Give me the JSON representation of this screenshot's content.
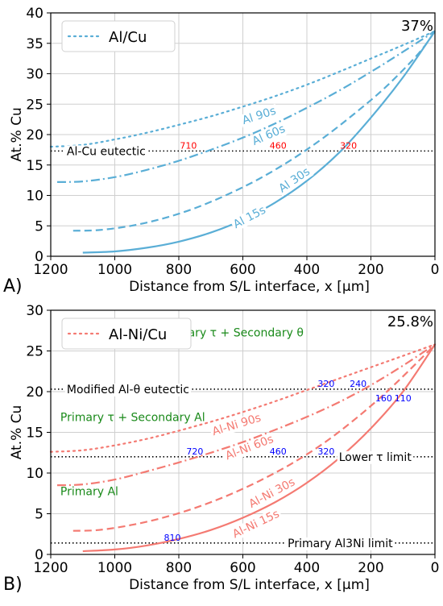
{
  "chart_data": [
    {
      "type": "line",
      "panel_label": "A)",
      "xlabel": "Distance from S/L interface, x [µm]",
      "ylabel": "At.% Cu",
      "xlim": [
        1200,
        0
      ],
      "ylim": [
        0,
        40
      ],
      "xticks": [
        1200,
        1000,
        800,
        600,
        400,
        200,
        0
      ],
      "yticks": [
        0,
        5,
        10,
        15,
        20,
        25,
        30,
        35,
        40
      ],
      "grid": true,
      "color": "#5aaed6",
      "legend": {
        "label": "Al/Cu",
        "placement": "top-left"
      },
      "top_value_label": "37%",
      "reference_lines": [
        {
          "y": 17.3,
          "label": "Al-Cu eutectic",
          "label_x": 1150
        }
      ],
      "series": [
        {
          "name": "Al 90s",
          "dash": "dot",
          "label_x": 550,
          "label_y": 23.2,
          "points": [
            [
              1200,
              18
            ],
            [
              1100,
              18.3
            ],
            [
              1000,
              19.2
            ],
            [
              900,
              20.3
            ],
            [
              800,
              21.6
            ],
            [
              700,
              23
            ],
            [
              600,
              24.6
            ],
            [
              500,
              26.3
            ],
            [
              400,
              28.2
            ],
            [
              300,
              30.3
            ],
            [
              200,
              32.5
            ],
            [
              100,
              34.7
            ],
            [
              0,
              37
            ]
          ]
        },
        {
          "name": "Al 60s",
          "dash": "dashdot",
          "label_x": 520,
          "label_y": 20.0,
          "points": [
            [
              1180,
              12.2
            ],
            [
              1100,
              12.3
            ],
            [
              1000,
              13
            ],
            [
              900,
              14.2
            ],
            [
              800,
              15.7
            ],
            [
              700,
              17.5
            ],
            [
              600,
              19.5
            ],
            [
              500,
              21.8
            ],
            [
              400,
              24.4
            ],
            [
              300,
              27.2
            ],
            [
              200,
              30.3
            ],
            [
              100,
              33.6
            ],
            [
              0,
              37
            ]
          ]
        },
        {
          "name": "Al 30s",
          "dash": "dash",
          "label_x": 440,
          "label_y": 12.6,
          "points": [
            [
              1130,
              4.2
            ],
            [
              1050,
              4.3
            ],
            [
              950,
              5.0
            ],
            [
              850,
              6.2
            ],
            [
              750,
              7.9
            ],
            [
              650,
              10.1
            ],
            [
              550,
              12.7
            ],
            [
              450,
              15.8
            ],
            [
              350,
              19.4
            ],
            [
              250,
              23.5
            ],
            [
              150,
              28.0
            ],
            [
              50,
              33.4
            ],
            [
              0,
              37
            ]
          ]
        },
        {
          "name": "Al 15s",
          "dash": "solid",
          "label_x": 580,
          "label_y": 6.5,
          "points": [
            [
              1100,
              0.6
            ],
            [
              1000,
              0.8
            ],
            [
              900,
              1.4
            ],
            [
              800,
              2.4
            ],
            [
              700,
              3.9
            ],
            [
              600,
              6.0
            ],
            [
              500,
              8.8
            ],
            [
              400,
              12.4
            ],
            [
              300,
              17.0
            ],
            [
              200,
              22.8
            ],
            [
              100,
              29.4
            ],
            [
              0,
              37
            ]
          ]
        }
      ],
      "annotations": [
        {
          "x": 770,
          "y": 17.3,
          "text": "710",
          "color": "#ff0000"
        },
        {
          "x": 490,
          "y": 17.3,
          "text": "460",
          "color": "#ff0000"
        },
        {
          "x": 270,
          "y": 17.3,
          "text": "320",
          "color": "#ff0000"
        }
      ]
    },
    {
      "type": "line",
      "panel_label": "B)",
      "xlabel": "Distance from S/L interface, x [µm]",
      "ylabel": "At.% Cu",
      "xlim": [
        1200,
        0
      ],
      "ylim": [
        0,
        30
      ],
      "xticks": [
        1200,
        1000,
        800,
        600,
        400,
        200,
        0
      ],
      "yticks": [
        0,
        5,
        10,
        15,
        20,
        25,
        30
      ],
      "grid": true,
      "color": "#f47a72",
      "legend": {
        "label": "Al-Ni/Cu",
        "placement": "top-left"
      },
      "top_value_label": "25.8%",
      "reference_lines": [
        {
          "y": 20.3,
          "label": "Modified Al-θ eutectic",
          "label_x": 1150
        },
        {
          "y": 12.0,
          "label": "Lower τ limit",
          "label_x": 300
        },
        {
          "y": 1.4,
          "label": "Primary Al3Ni limit",
          "label_x": 460
        }
      ],
      "region_labels": [
        {
          "x": 850,
          "y": 26.8,
          "text": "Primary τ + Secondary θ"
        },
        {
          "x": 1170,
          "y": 16.4,
          "text": "Primary τ + Secondary Al"
        },
        {
          "x": 1170,
          "y": 7.3,
          "text": "Primary Al"
        }
      ],
      "series": [
        {
          "name": "Al-Ni 90s",
          "dash": "dot",
          "label_x": 620,
          "label_y": 16.0,
          "points": [
            [
              1200,
              12.6
            ],
            [
              1100,
              12.8
            ],
            [
              1000,
              13.4
            ],
            [
              900,
              14.2
            ],
            [
              800,
              15.2
            ],
            [
              700,
              16.3
            ],
            [
              600,
              17.5
            ],
            [
              500,
              18.8
            ],
            [
              400,
              20.2
            ],
            [
              300,
              21.6
            ],
            [
              200,
              23.0
            ],
            [
              100,
              24.4
            ],
            [
              0,
              25.8
            ]
          ]
        },
        {
          "name": "Al-Ni 60s",
          "dash": "dashdot",
          "label_x": 580,
          "label_y": 13.2,
          "points": [
            [
              1180,
              8.5
            ],
            [
              1100,
              8.6
            ],
            [
              1000,
              9.2
            ],
            [
              900,
              10.2
            ],
            [
              800,
              11.3
            ],
            [
              700,
              12.5
            ],
            [
              600,
              13.8
            ],
            [
              500,
              15.3
            ],
            [
              400,
              16.9
            ],
            [
              300,
              18.7
            ],
            [
              200,
              20.8
            ],
            [
              100,
              23.2
            ],
            [
              0,
              25.8
            ]
          ]
        },
        {
          "name": "Al-Ni 30s",
          "dash": "dash",
          "label_x": 510,
          "label_y": 7.6,
          "points": [
            [
              1130,
              2.9
            ],
            [
              1050,
              3.0
            ],
            [
              950,
              3.6
            ],
            [
              850,
              4.5
            ],
            [
              750,
              5.7
            ],
            [
              650,
              7.2
            ],
            [
              550,
              9.0
            ],
            [
              450,
              11.1
            ],
            [
              350,
              13.6
            ],
            [
              250,
              16.6
            ],
            [
              150,
              20.0
            ],
            [
              50,
              23.8
            ],
            [
              0,
              25.8
            ]
          ]
        },
        {
          "name": "Al-Ni 15s",
          "dash": "solid",
          "label_x": 560,
          "label_y": 3.8,
          "points": [
            [
              1100,
              0.4
            ],
            [
              1000,
              0.6
            ],
            [
              900,
              1.1
            ],
            [
              800,
              1.9
            ],
            [
              700,
              3.0
            ],
            [
              600,
              4.5
            ],
            [
              500,
              6.4
            ],
            [
              400,
              8.8
            ],
            [
              300,
              11.8
            ],
            [
              200,
              15.5
            ],
            [
              100,
              20.0
            ],
            [
              0,
              25.8
            ]
          ]
        }
      ],
      "annotations": [
        {
          "x": 340,
          "y": 20.3,
          "text": "320",
          "color": "#0000ff"
        },
        {
          "x": 240,
          "y": 20.3,
          "text": "240",
          "color": "#0000ff"
        },
        {
          "x": 160,
          "y": 18.5,
          "text": "160",
          "color": "#0000ff"
        },
        {
          "x": 100,
          "y": 18.5,
          "text": "110",
          "color": "#0000ff"
        },
        {
          "x": 750,
          "y": 12.0,
          "text": "720",
          "color": "#0000ff"
        },
        {
          "x": 490,
          "y": 12.0,
          "text": "460",
          "color": "#0000ff"
        },
        {
          "x": 340,
          "y": 12.0,
          "text": "320",
          "color": "#0000ff"
        },
        {
          "x": 820,
          "y": 1.4,
          "text": "810",
          "color": "#0000ff"
        }
      ]
    }
  ]
}
